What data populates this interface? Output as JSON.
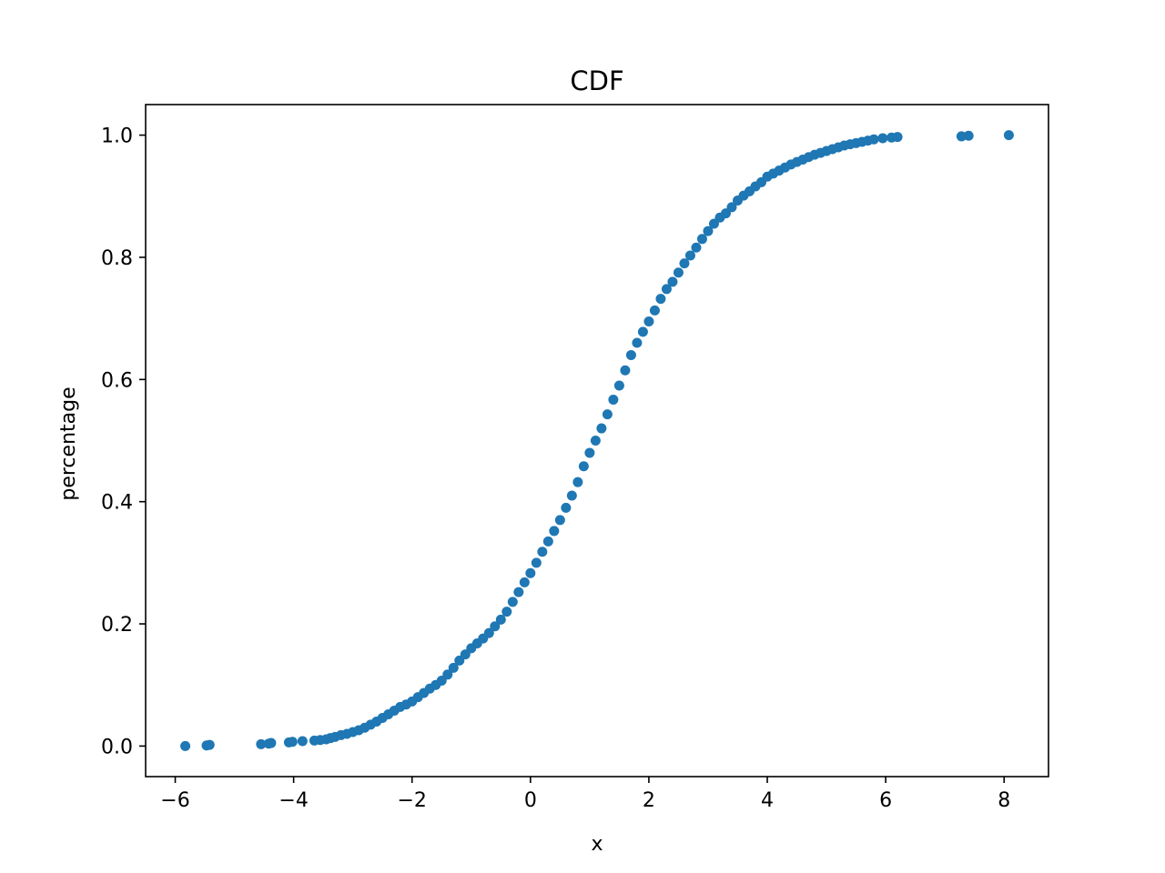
{
  "chart_data": {
    "type": "scatter",
    "title": "CDF",
    "xlabel": "x",
    "ylabel": "percentage",
    "xlim": [
      -6.5,
      8.75
    ],
    "ylim": [
      -0.05,
      1.05
    ],
    "x_ticks": [
      -6,
      -4,
      -2,
      0,
      2,
      4,
      6,
      8
    ],
    "x_tick_labels": [
      "−6",
      "−4",
      "−2",
      "0",
      "2",
      "4",
      "6",
      "8"
    ],
    "y_ticks": [
      0.0,
      0.2,
      0.4,
      0.6,
      0.8,
      1.0
    ],
    "y_tick_labels": [
      "0.0",
      "0.2",
      "0.4",
      "0.6",
      "0.8",
      "1.0"
    ],
    "grid": false,
    "marker_color": "#1f77b4",
    "series": [
      {
        "points": [
          [
            -5.83,
            0.0
          ],
          [
            -5.47,
            0.001
          ],
          [
            -5.42,
            0.002
          ],
          [
            -4.55,
            0.003
          ],
          [
            -4.42,
            0.004
          ],
          [
            -4.38,
            0.005
          ],
          [
            -4.08,
            0.006
          ],
          [
            -4.02,
            0.007
          ],
          [
            -3.85,
            0.008
          ],
          [
            -3.65,
            0.009
          ],
          [
            -3.55,
            0.01
          ],
          [
            -3.45,
            0.011
          ],
          [
            -3.38,
            0.013
          ],
          [
            -3.3,
            0.015
          ],
          [
            -3.2,
            0.018
          ],
          [
            -3.1,
            0.02
          ],
          [
            -3.0,
            0.023
          ],
          [
            -2.9,
            0.026
          ],
          [
            -2.8,
            0.03
          ],
          [
            -2.7,
            0.035
          ],
          [
            -2.6,
            0.04
          ],
          [
            -2.5,
            0.046
          ],
          [
            -2.4,
            0.052
          ],
          [
            -2.3,
            0.058
          ],
          [
            -2.2,
            0.064
          ],
          [
            -2.1,
            0.068
          ],
          [
            -2.0,
            0.073
          ],
          [
            -1.9,
            0.08
          ],
          [
            -1.8,
            0.087
          ],
          [
            -1.7,
            0.094
          ],
          [
            -1.6,
            0.1
          ],
          [
            -1.5,
            0.107
          ],
          [
            -1.4,
            0.117
          ],
          [
            -1.3,
            0.128
          ],
          [
            -1.2,
            0.14
          ],
          [
            -1.1,
            0.15
          ],
          [
            -1.0,
            0.16
          ],
          [
            -0.9,
            0.168
          ],
          [
            -0.8,
            0.176
          ],
          [
            -0.7,
            0.185
          ],
          [
            -0.6,
            0.196
          ],
          [
            -0.5,
            0.207
          ],
          [
            -0.4,
            0.22
          ],
          [
            -0.3,
            0.236
          ],
          [
            -0.2,
            0.252
          ],
          [
            -0.1,
            0.268
          ],
          [
            0.0,
            0.283
          ],
          [
            0.1,
            0.3
          ],
          [
            0.2,
            0.318
          ],
          [
            0.3,
            0.335
          ],
          [
            0.4,
            0.352
          ],
          [
            0.5,
            0.37
          ],
          [
            0.6,
            0.39
          ],
          [
            0.7,
            0.41
          ],
          [
            0.8,
            0.432
          ],
          [
            0.9,
            0.458
          ],
          [
            1.0,
            0.48
          ],
          [
            1.1,
            0.5
          ],
          [
            1.2,
            0.52
          ],
          [
            1.3,
            0.543
          ],
          [
            1.4,
            0.567
          ],
          [
            1.5,
            0.59
          ],
          [
            1.6,
            0.615
          ],
          [
            1.7,
            0.64
          ],
          [
            1.8,
            0.66
          ],
          [
            1.9,
            0.678
          ],
          [
            2.0,
            0.695
          ],
          [
            2.1,
            0.713
          ],
          [
            2.2,
            0.732
          ],
          [
            2.3,
            0.748
          ],
          [
            2.4,
            0.76
          ],
          [
            2.5,
            0.775
          ],
          [
            2.6,
            0.79
          ],
          [
            2.7,
            0.803
          ],
          [
            2.8,
            0.816
          ],
          [
            2.9,
            0.83
          ],
          [
            3.0,
            0.843
          ],
          [
            3.1,
            0.855
          ],
          [
            3.2,
            0.865
          ],
          [
            3.3,
            0.872
          ],
          [
            3.4,
            0.882
          ],
          [
            3.5,
            0.893
          ],
          [
            3.6,
            0.901
          ],
          [
            3.7,
            0.908
          ],
          [
            3.8,
            0.916
          ],
          [
            3.9,
            0.923
          ],
          [
            4.0,
            0.932
          ],
          [
            4.1,
            0.937
          ],
          [
            4.2,
            0.942
          ],
          [
            4.3,
            0.947
          ],
          [
            4.4,
            0.952
          ],
          [
            4.5,
            0.956
          ],
          [
            4.6,
            0.96
          ],
          [
            4.7,
            0.964
          ],
          [
            4.8,
            0.968
          ],
          [
            4.9,
            0.971
          ],
          [
            5.0,
            0.974
          ],
          [
            5.1,
            0.977
          ],
          [
            5.2,
            0.98
          ],
          [
            5.3,
            0.983
          ],
          [
            5.4,
            0.985
          ],
          [
            5.5,
            0.987
          ],
          [
            5.6,
            0.989
          ],
          [
            5.7,
            0.991
          ],
          [
            5.8,
            0.993
          ],
          [
            5.95,
            0.995
          ],
          [
            6.1,
            0.996
          ],
          [
            6.2,
            0.997
          ],
          [
            7.28,
            0.998
          ],
          [
            7.4,
            0.999
          ],
          [
            8.08,
            1.0
          ]
        ]
      }
    ]
  }
}
